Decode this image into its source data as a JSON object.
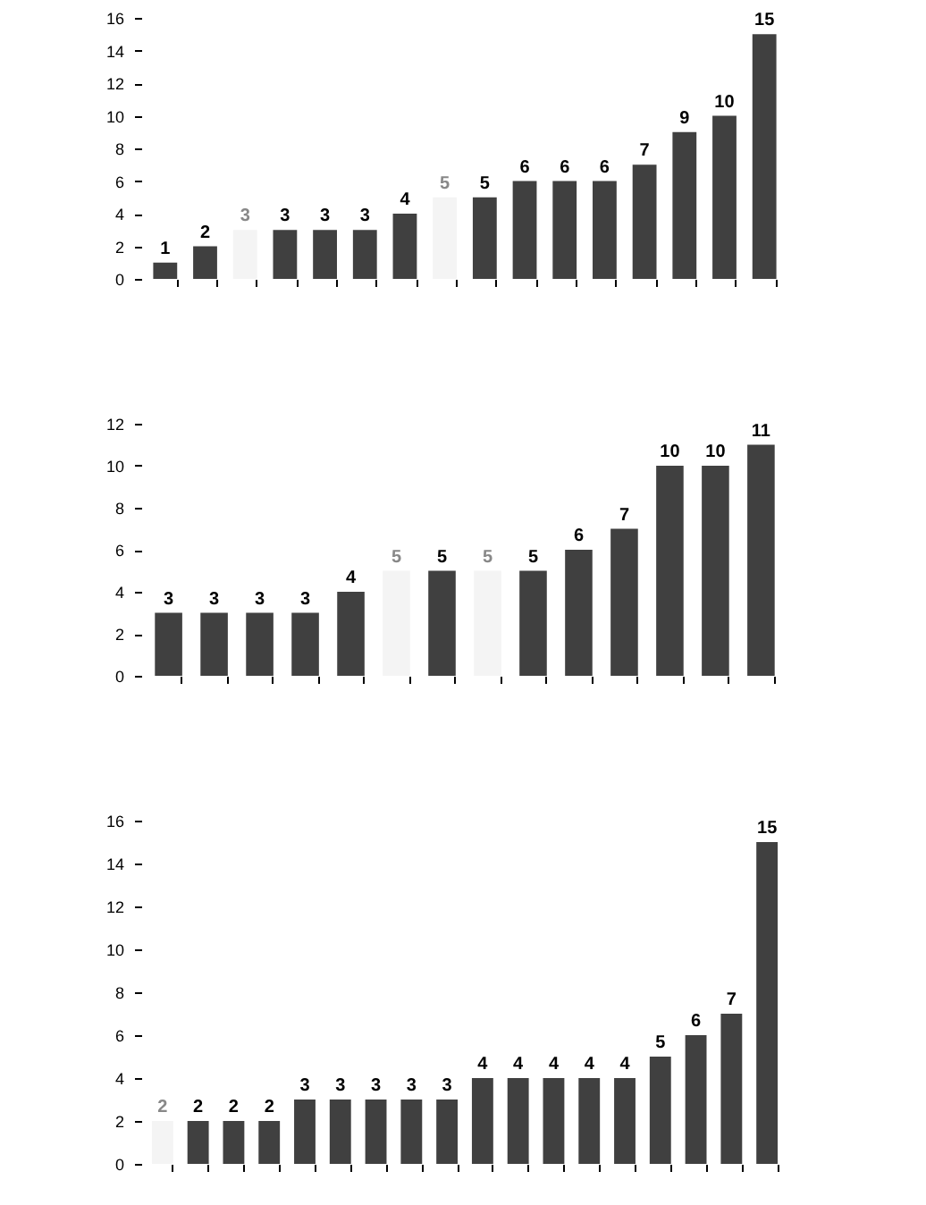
{
  "chart_data": [
    {
      "type": "bar",
      "categories": [
        null,
        null,
        null,
        null,
        null,
        null,
        null,
        null,
        null,
        null,
        null,
        null,
        null,
        null,
        null,
        null
      ],
      "values": [
        1,
        2,
        3,
        3,
        3,
        3,
        4,
        5,
        5,
        6,
        6,
        6,
        7,
        9,
        10,
        15
      ],
      "colors": [
        "#404040",
        "#404040",
        "#f4f4f4",
        "#404040",
        "#404040",
        "#404040",
        "#404040",
        "#f4f4f4",
        "#404040",
        "#404040",
        "#404040",
        "#404040",
        "#404040",
        "#404040",
        "#404040",
        "#404040"
      ],
      "ylim": [
        0,
        16
      ],
      "yticks": [
        0,
        2,
        4,
        6,
        8,
        10,
        12,
        14,
        16
      ],
      "data_labels": true,
      "tick_labels": "y",
      "grid": false
    },
    {
      "type": "bar",
      "categories": [
        null,
        null,
        null,
        null,
        null,
        null,
        null,
        null,
        null,
        null,
        null,
        null,
        null,
        null
      ],
      "values": [
        3,
        3,
        3,
        3,
        4,
        5,
        5,
        5,
        5,
        6,
        7,
        10,
        10,
        11
      ],
      "colors": [
        "#404040",
        "#404040",
        "#404040",
        "#404040",
        "#404040",
        "#f4f4f4",
        "#404040",
        "#f4f4f4",
        "#404040",
        "#404040",
        "#404040",
        "#404040",
        "#404040",
        "#404040"
      ],
      "ylim": [
        0,
        12
      ],
      "yticks": [
        0,
        2,
        4,
        6,
        8,
        10,
        12
      ],
      "data_labels": true,
      "tick_labels": "y",
      "grid": false
    },
    {
      "type": "bar",
      "categories": [
        null,
        null,
        null,
        null,
        null,
        null,
        null,
        null,
        null,
        null,
        null,
        null,
        null,
        null,
        null,
        null,
        null,
        null
      ],
      "values": [
        2,
        2,
        2,
        2,
        3,
        3,
        3,
        3,
        3,
        4,
        4,
        4,
        4,
        4,
        5,
        6,
        7,
        15
      ],
      "colors": [
        "#f4f4f4",
        "#404040",
        "#404040",
        "#404040",
        "#404040",
        "#404040",
        "#404040",
        "#404040",
        "#404040",
        "#404040",
        "#404040",
        "#404040",
        "#404040",
        "#404040",
        "#404040",
        "#404040",
        "#404040",
        "#404040"
      ],
      "ylim": [
        0,
        16
      ],
      "yticks": [
        0,
        2,
        4,
        6,
        8,
        10,
        12,
        14,
        16
      ],
      "data_labels": true,
      "tick_labels": "y",
      "grid": false
    }
  ]
}
